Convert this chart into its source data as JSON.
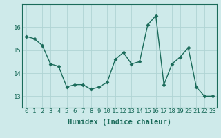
{
  "x": [
    0,
    1,
    2,
    3,
    4,
    5,
    6,
    7,
    8,
    9,
    10,
    11,
    12,
    13,
    14,
    15,
    16,
    17,
    18,
    19,
    20,
    21,
    22,
    23
  ],
  "y": [
    15.6,
    15.5,
    15.2,
    14.4,
    14.3,
    13.4,
    13.5,
    13.5,
    13.3,
    13.4,
    13.6,
    14.6,
    14.9,
    14.4,
    14.5,
    16.1,
    16.5,
    13.5,
    14.4,
    14.7,
    15.1,
    13.4,
    13.0,
    13.0
  ],
  "line_color": "#1a6b5a",
  "marker": "D",
  "marker_size": 2.5,
  "bg_color": "#ceeaea",
  "grid_color": "#b0d4d4",
  "xlabel": "Humidex (Indice chaleur)",
  "ylim": [
    12.5,
    17.0
  ],
  "yticks": [
    13,
    14,
    15,
    16
  ],
  "xticks": [
    0,
    1,
    2,
    3,
    4,
    5,
    6,
    7,
    8,
    9,
    10,
    11,
    12,
    13,
    14,
    15,
    16,
    17,
    18,
    19,
    20,
    21,
    22,
    23
  ],
  "axis_color": "#1a6b5a",
  "xlabel_fontsize": 7.5,
  "tick_fontsize": 6.5,
  "line_width": 1.0
}
